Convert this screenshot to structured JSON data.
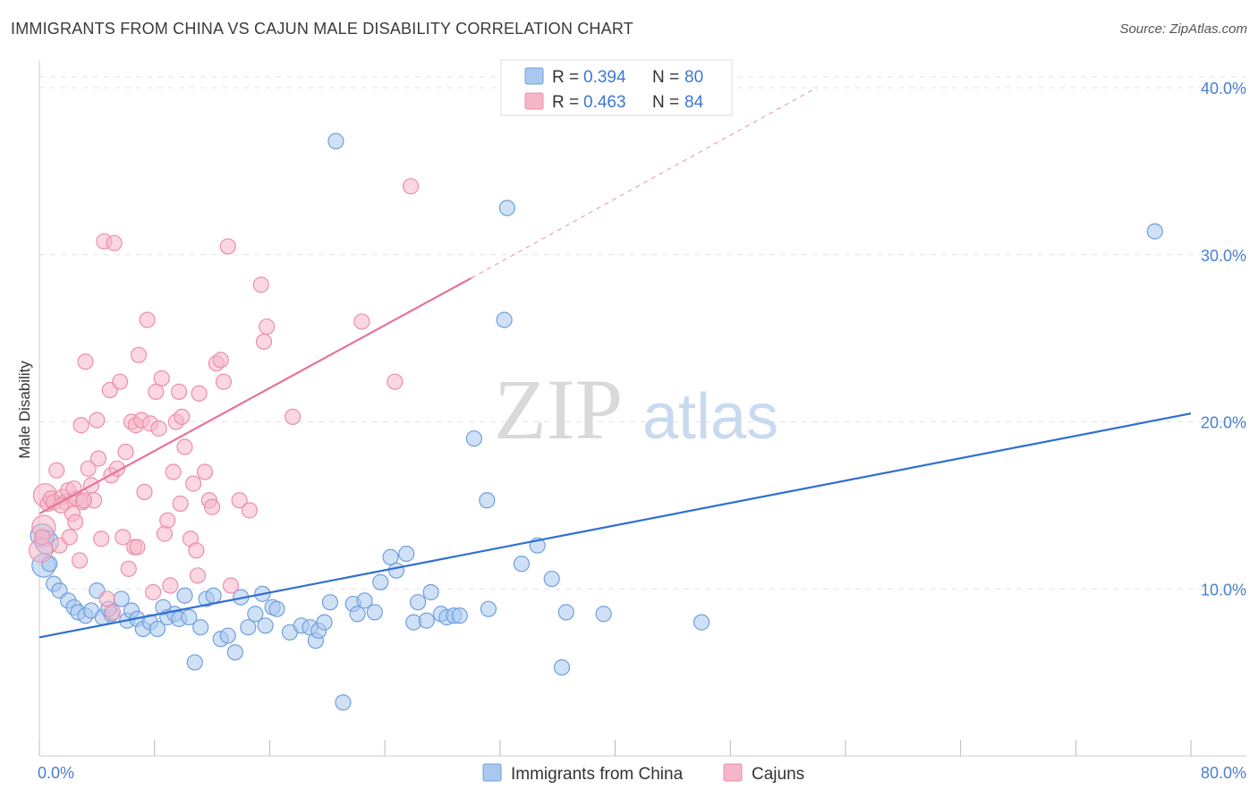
{
  "header": {
    "title": "IMMIGRANTS FROM CHINA VS CAJUN MALE DISABILITY CORRELATION CHART",
    "source": "Source: ZipAtlas.com"
  },
  "watermark": {
    "zip": "ZIP",
    "atlas": "atlas"
  },
  "colors": {
    "blue_fill": "#a9c8ef",
    "blue_stroke": "#6f9fde",
    "blue_line": "#2f6fd0",
    "pink_fill": "#f5b6c8",
    "pink_stroke": "#eb8fab",
    "pink_line": "#e8729a",
    "grid": "#e3e3e3",
    "axis_text": "#4a7fd0"
  },
  "legend": {
    "rows": [
      {
        "r_label": "R =",
        "r_value": "0.394",
        "n_label": "N =",
        "n_value": "80"
      },
      {
        "r_label": "R =",
        "r_value": "0.463",
        "n_label": "N =",
        "n_value": "84"
      }
    ]
  },
  "bottom_legend": {
    "blue": "Immigrants from China",
    "pink": "Cajuns"
  },
  "chart_data": {
    "type": "scatter",
    "title": "IMMIGRANTS FROM CHINA VS CAJUN MALE DISABILITY CORRELATION CHART",
    "xlabel": "",
    "ylabel": "Male Disability",
    "xlim": [
      0,
      80
    ],
    "ylim": [
      0,
      41.5
    ],
    "x_tick_labels": [
      "0.0%",
      "80.0%"
    ],
    "y_ticks": [
      10,
      20,
      30,
      40
    ],
    "y_tick_labels": [
      "10.0%",
      "20.0%",
      "30.0%",
      "40.0%"
    ],
    "grid": true,
    "legend_position": "top-center",
    "series": [
      {
        "name": "Immigrants from China",
        "r": 0.394,
        "n": 80,
        "trend": {
          "x": [
            0,
            80
          ],
          "y": [
            7.1,
            20.5
          ],
          "dashed_from": null
        },
        "points": [
          [
            0.2,
            13.2
          ],
          [
            0.3,
            11.4
          ],
          [
            0.5,
            12.8
          ],
          [
            1.0,
            10.3
          ],
          [
            1.4,
            9.9
          ],
          [
            2.0,
            9.3
          ],
          [
            2.4,
            8.9
          ],
          [
            2.7,
            8.6
          ],
          [
            3.2,
            8.4
          ],
          [
            3.6,
            8.7
          ],
          [
            4.0,
            9.9
          ],
          [
            4.4,
            8.3
          ],
          [
            5.0,
            8.5
          ],
          [
            5.7,
            9.4
          ],
          [
            6.1,
            8.1
          ],
          [
            6.4,
            8.7
          ],
          [
            6.8,
            8.2
          ],
          [
            7.2,
            7.6
          ],
          [
            7.7,
            8.0
          ],
          [
            8.2,
            7.6
          ],
          [
            8.6,
            8.9
          ],
          [
            8.9,
            8.3
          ],
          [
            9.4,
            8.5
          ],
          [
            9.7,
            8.2
          ],
          [
            10.1,
            9.6
          ],
          [
            10.4,
            8.3
          ],
          [
            10.8,
            5.6
          ],
          [
            11.2,
            7.7
          ],
          [
            11.6,
            9.4
          ],
          [
            12.1,
            9.6
          ],
          [
            12.6,
            7.0
          ],
          [
            13.1,
            7.2
          ],
          [
            13.6,
            6.2
          ],
          [
            14.0,
            9.5
          ],
          [
            14.5,
            7.7
          ],
          [
            15.0,
            8.5
          ],
          [
            15.5,
            9.7
          ],
          [
            15.7,
            7.8
          ],
          [
            16.2,
            8.9
          ],
          [
            16.5,
            8.8
          ],
          [
            17.4,
            7.4
          ],
          [
            18.2,
            7.8
          ],
          [
            18.8,
            7.7
          ],
          [
            19.2,
            6.9
          ],
          [
            19.4,
            7.5
          ],
          [
            19.8,
            8.0
          ],
          [
            20.2,
            9.2
          ],
          [
            21.1,
            3.2
          ],
          [
            21.8,
            9.1
          ],
          [
            22.1,
            8.5
          ],
          [
            22.6,
            9.3
          ],
          [
            23.3,
            8.6
          ],
          [
            23.7,
            10.4
          ],
          [
            24.4,
            11.9
          ],
          [
            24.8,
            11.1
          ],
          [
            25.5,
            12.1
          ],
          [
            26.0,
            8.0
          ],
          [
            26.3,
            9.2
          ],
          [
            26.9,
            8.1
          ],
          [
            27.2,
            9.8
          ],
          [
            27.9,
            8.5
          ],
          [
            28.3,
            8.3
          ],
          [
            28.8,
            8.4
          ],
          [
            29.2,
            8.4
          ],
          [
            30.2,
            19.0
          ],
          [
            31.1,
            15.3
          ],
          [
            31.2,
            8.8
          ],
          [
            32.3,
            26.1
          ],
          [
            32.5,
            32.8
          ],
          [
            33.5,
            11.5
          ],
          [
            34.6,
            12.6
          ],
          [
            35.6,
            10.6
          ],
          [
            36.3,
            5.3
          ],
          [
            36.6,
            8.6
          ],
          [
            39.2,
            8.5
          ],
          [
            46.0,
            8.0
          ],
          [
            20.6,
            36.8
          ],
          [
            77.5,
            31.4
          ],
          [
            0.7,
            11.5
          ],
          [
            4.8,
            8.8
          ]
        ]
      },
      {
        "name": "Cajuns",
        "r": 0.463,
        "n": 84,
        "trend": {
          "x": [
            0,
            30
          ],
          "y": [
            14.5,
            28.6
          ],
          "dashed_to": [
            54,
            40.0
          ]
        },
        "points": [
          [
            0.1,
            12.3
          ],
          [
            0.3,
            13.7
          ],
          [
            0.4,
            15.6
          ],
          [
            0.6,
            15.1
          ],
          [
            0.8,
            15.4
          ],
          [
            1.0,
            15.2
          ],
          [
            1.2,
            17.1
          ],
          [
            1.4,
            12.6
          ],
          [
            1.6,
            15.5
          ],
          [
            1.8,
            15.2
          ],
          [
            2.0,
            15.9
          ],
          [
            2.1,
            13.1
          ],
          [
            2.3,
            14.5
          ],
          [
            2.5,
            14.0
          ],
          [
            2.6,
            15.4
          ],
          [
            2.8,
            11.7
          ],
          [
            2.9,
            19.8
          ],
          [
            3.0,
            15.2
          ],
          [
            3.2,
            23.6
          ],
          [
            3.4,
            17.2
          ],
          [
            3.6,
            16.2
          ],
          [
            3.8,
            15.3
          ],
          [
            4.0,
            20.1
          ],
          [
            4.1,
            17.8
          ],
          [
            4.3,
            13.0
          ],
          [
            4.5,
            30.8
          ],
          [
            4.7,
            9.4
          ],
          [
            4.9,
            21.9
          ],
          [
            5.0,
            16.8
          ],
          [
            5.2,
            30.7
          ],
          [
            5.4,
            17.2
          ],
          [
            5.6,
            22.4
          ],
          [
            5.8,
            13.1
          ],
          [
            6.0,
            18.2
          ],
          [
            6.2,
            11.2
          ],
          [
            6.4,
            20.0
          ],
          [
            6.6,
            12.5
          ],
          [
            6.7,
            19.8
          ],
          [
            6.9,
            24.0
          ],
          [
            7.1,
            20.1
          ],
          [
            7.3,
            15.8
          ],
          [
            7.5,
            26.1
          ],
          [
            7.7,
            19.9
          ],
          [
            7.9,
            9.8
          ],
          [
            8.1,
            21.8
          ],
          [
            8.3,
            19.6
          ],
          [
            8.5,
            22.6
          ],
          [
            8.7,
            13.3
          ],
          [
            8.9,
            14.1
          ],
          [
            9.1,
            10.2
          ],
          [
            9.3,
            17.0
          ],
          [
            9.5,
            20.0
          ],
          [
            9.7,
            21.8
          ],
          [
            9.9,
            20.3
          ],
          [
            10.1,
            18.5
          ],
          [
            10.5,
            13.0
          ],
          [
            10.7,
            16.3
          ],
          [
            10.9,
            12.3
          ],
          [
            11.1,
            21.7
          ],
          [
            11.5,
            17.0
          ],
          [
            11.8,
            15.3
          ],
          [
            12.0,
            14.9
          ],
          [
            12.3,
            23.5
          ],
          [
            12.6,
            23.7
          ],
          [
            12.8,
            22.4
          ],
          [
            13.1,
            30.5
          ],
          [
            13.3,
            10.2
          ],
          [
            13.9,
            15.3
          ],
          [
            14.6,
            14.7
          ],
          [
            15.4,
            28.2
          ],
          [
            15.6,
            24.8
          ],
          [
            15.8,
            25.7
          ],
          [
            17.6,
            20.3
          ],
          [
            22.4,
            26.0
          ],
          [
            24.7,
            22.4
          ],
          [
            25.8,
            34.1
          ],
          [
            0.2,
            13.1
          ],
          [
            1.5,
            15.0
          ],
          [
            2.4,
            16.0
          ],
          [
            3.1,
            15.3
          ],
          [
            5.1,
            8.6
          ],
          [
            6.8,
            12.5
          ],
          [
            9.8,
            15.1
          ],
          [
            11.0,
            10.8
          ]
        ]
      }
    ]
  }
}
